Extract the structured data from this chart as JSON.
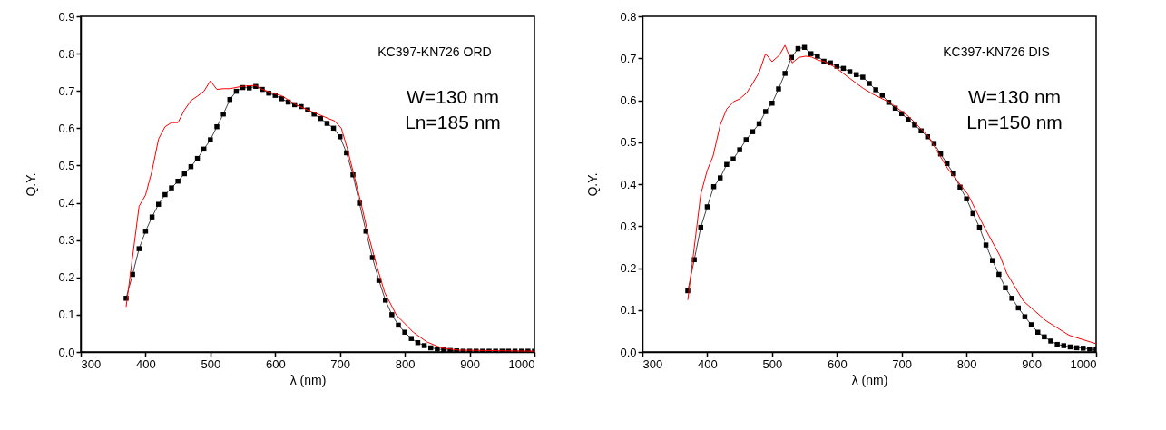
{
  "chart_data": [
    {
      "type": "line",
      "xlabel": "λ (nm)",
      "ylabel": "Q.Y.",
      "xlim": [
        300,
        1000
      ],
      "ylim": [
        0,
        0.9
      ],
      "xticks": [
        300,
        400,
        500,
        600,
        700,
        800,
        900,
        1000
      ],
      "yticks": [
        {
          "value": 0,
          "label": "0.0"
        },
        0.1,
        0.2,
        0.3,
        0.4,
        0.5,
        0.6,
        0.7,
        0.8,
        0.9
      ],
      "grid": false,
      "marker": "square",
      "annotations": [
        "KC397-KN726 ORD",
        "W=130 nm",
        "Ln=185 nm"
      ],
      "series": [
        {
          "color": "#000000",
          "x": [
            370,
            380,
            390,
            400,
            410,
            420,
            430,
            440,
            450,
            460,
            470,
            480,
            490,
            500,
            510,
            520,
            530,
            540,
            550,
            560,
            570,
            580,
            590,
            600,
            610,
            620,
            630,
            640,
            650,
            660,
            670,
            680,
            690,
            700,
            710,
            720,
            730,
            740,
            750,
            760,
            770,
            780,
            790,
            800,
            810,
            820,
            830,
            840,
            850,
            860,
            870,
            880,
            890,
            900,
            910,
            920,
            930,
            940,
            950,
            960,
            970,
            980,
            990,
            1000
          ],
          "values": [
            0.144,
            0.208,
            0.277,
            0.324,
            0.362,
            0.396,
            0.422,
            0.44,
            0.458,
            0.478,
            0.497,
            0.519,
            0.544,
            0.569,
            0.604,
            0.638,
            0.677,
            0.699,
            0.709,
            0.708,
            0.712,
            0.704,
            0.694,
            0.688,
            0.679,
            0.67,
            0.663,
            0.658,
            0.649,
            0.638,
            0.626,
            0.613,
            0.6,
            0.577,
            0.534,
            0.475,
            0.399,
            0.324,
            0.253,
            0.192,
            0.139,
            0.1,
            0.072,
            0.053,
            0.036,
            0.025,
            0.017,
            0.011,
            0.008,
            0.006,
            0.004,
            0.003,
            0.002,
            0.002,
            0.002,
            0.002,
            0.002,
            0.002,
            0.002,
            0.002,
            0.002,
            0.002,
            0.002,
            0.002
          ]
        },
        {
          "color": "#ff0000",
          "marker": "none",
          "x": [
            370,
            390,
            400,
            410,
            420,
            430,
            440,
            450,
            460,
            470,
            480,
            490,
            500,
            510,
            520,
            530,
            548,
            570,
            578,
            591,
            610,
            634,
            650,
            692,
            702,
            711,
            722,
            733,
            743,
            756,
            769,
            787,
            813,
            834,
            856,
            882,
            1000
          ],
          "values": [
            0.121,
            0.391,
            0.421,
            0.486,
            0.571,
            0.604,
            0.615,
            0.615,
            0.649,
            0.674,
            0.686,
            0.699,
            0.727,
            0.704,
            0.706,
            0.706,
            0.712,
            0.715,
            0.706,
            0.697,
            0.687,
            0.661,
            0.649,
            0.619,
            0.6,
            0.547,
            0.471,
            0.395,
            0.319,
            0.235,
            0.159,
            0.099,
            0.053,
            0.027,
            0.011,
            0.005,
            0.002
          ]
        }
      ]
    },
    {
      "type": "line",
      "xlabel": "λ (nm)",
      "ylabel": "Q.Y.",
      "xlim": [
        300,
        1000
      ],
      "ylim": [
        0,
        0.8
      ],
      "xticks": [
        300,
        400,
        500,
        600,
        700,
        800,
        900,
        1000
      ],
      "yticks": [
        {
          "value": 0,
          "label": "0.0"
        },
        0.1,
        0.2,
        0.3,
        0.4,
        0.5,
        0.6,
        0.7,
        0.8
      ],
      "grid": false,
      "marker": "square",
      "annotations": [
        "KC397-KN726 DIS",
        "W=130 nm",
        "Ln=150 nm"
      ],
      "series": [
        {
          "color": "#000000",
          "x": [
            370,
            380,
            390,
            400,
            410,
            420,
            430,
            440,
            450,
            460,
            470,
            480,
            490,
            500,
            510,
            520,
            530,
            540,
            550,
            560,
            570,
            580,
            590,
            600,
            610,
            620,
            630,
            640,
            650,
            660,
            670,
            680,
            690,
            700,
            710,
            720,
            730,
            740,
            750,
            760,
            770,
            780,
            790,
            800,
            810,
            820,
            830,
            840,
            850,
            860,
            870,
            880,
            890,
            900,
            910,
            920,
            930,
            940,
            950,
            960,
            970,
            980,
            990,
            1000
          ],
          "values": [
            0.146,
            0.22,
            0.297,
            0.346,
            0.394,
            0.415,
            0.447,
            0.46,
            0.482,
            0.506,
            0.525,
            0.544,
            0.573,
            0.593,
            0.627,
            0.664,
            0.702,
            0.723,
            0.726,
            0.711,
            0.705,
            0.693,
            0.689,
            0.681,
            0.676,
            0.668,
            0.661,
            0.655,
            0.64,
            0.625,
            0.612,
            0.595,
            0.581,
            0.568,
            0.554,
            0.541,
            0.527,
            0.513,
            0.497,
            0.472,
            0.449,
            0.425,
            0.393,
            0.365,
            0.33,
            0.297,
            0.255,
            0.218,
            0.185,
            0.153,
            0.128,
            0.105,
            0.084,
            0.065,
            0.047,
            0.036,
            0.026,
            0.018,
            0.015,
            0.012,
            0.01,
            0.009,
            0.007,
            0.005
          ]
        },
        {
          "color": "#ff0000",
          "marker": "none",
          "x": [
            370,
            390,
            400,
            409,
            420,
            430,
            441,
            450,
            461,
            470,
            480,
            490,
            500,
            511,
            520,
            531,
            541,
            552,
            561,
            572,
            580,
            598,
            620,
            641,
            655,
            681,
            711,
            741,
            771,
            802,
            828,
            852,
            862,
            888,
            923,
            958,
            999
          ],
          "values": [
            0.124,
            0.376,
            0.433,
            0.467,
            0.541,
            0.579,
            0.597,
            0.603,
            0.618,
            0.64,
            0.666,
            0.711,
            0.692,
            0.707,
            0.731,
            0.689,
            0.702,
            0.705,
            0.703,
            0.695,
            0.693,
            0.678,
            0.652,
            0.628,
            0.615,
            0.595,
            0.561,
            0.514,
            0.437,
            0.376,
            0.296,
            0.228,
            0.188,
            0.121,
            0.074,
            0.04,
            0.02
          ]
        }
      ]
    }
  ]
}
